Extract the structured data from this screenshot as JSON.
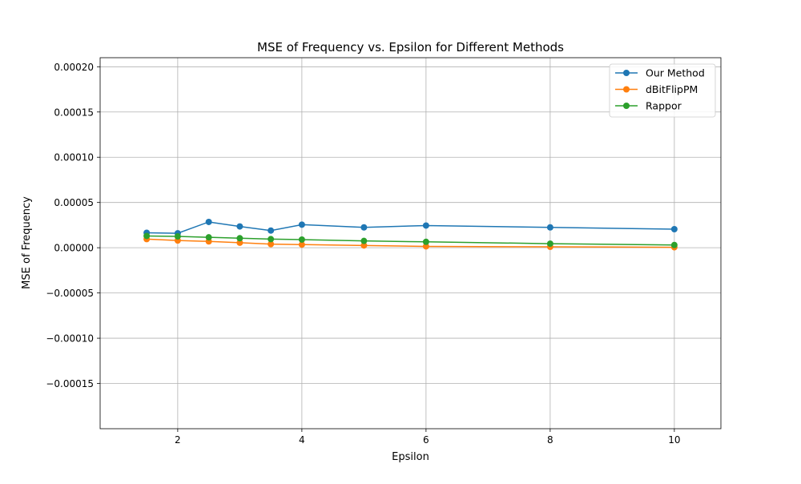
{
  "chart_data": {
    "type": "line",
    "title": "MSE of Frequency vs. Epsilon for Different Methods",
    "xlabel": "Epsilon",
    "ylabel": "MSE of Frequency",
    "xlim": [
      0.75,
      10.75
    ],
    "ylim": [
      -0.0002,
      0.00021
    ],
    "xticks": [
      2,
      4,
      6,
      8,
      10
    ],
    "xtick_labels": [
      "2",
      "4",
      "6",
      "8",
      "10"
    ],
    "yticks": [
      -0.00015,
      -0.0001,
      -5e-05,
      0.0,
      5e-05,
      0.0001,
      0.00015,
      0.0002
    ],
    "ytick_labels": [
      "−0.00015",
      "−0.00010",
      "−0.00005",
      "0.00000",
      "0.00005",
      "0.00010",
      "0.00015",
      "0.00020"
    ],
    "grid": true,
    "legend_position": "top-right",
    "x": [
      1.5,
      2,
      2.5,
      3,
      3.5,
      4,
      5,
      6,
      8,
      10
    ],
    "series": [
      {
        "name": "Our Method",
        "color": "#1f77b4",
        "values": [
          1.65e-05,
          1.6e-05,
          2.85e-05,
          2.35e-05,
          1.9e-05,
          2.55e-05,
          2.25e-05,
          2.45e-05,
          2.25e-05,
          2.05e-05
        ]
      },
      {
        "name": "dBitFlipPM",
        "color": "#ff7f0e",
        "values": [
          9.5e-06,
          8e-06,
          7e-06,
          5.5e-06,
          4e-06,
          3.5e-06,
          2.5e-06,
          1.5e-06,
          1e-06,
          5e-07
        ]
      },
      {
        "name": "Rappor",
        "color": "#2ca02c",
        "values": [
          1.3e-05,
          1.25e-05,
          1.15e-05,
          1.05e-05,
          9.5e-06,
          9e-06,
          7.5e-06,
          6.5e-06,
          4.5e-06,
          3e-06
        ]
      }
    ]
  }
}
